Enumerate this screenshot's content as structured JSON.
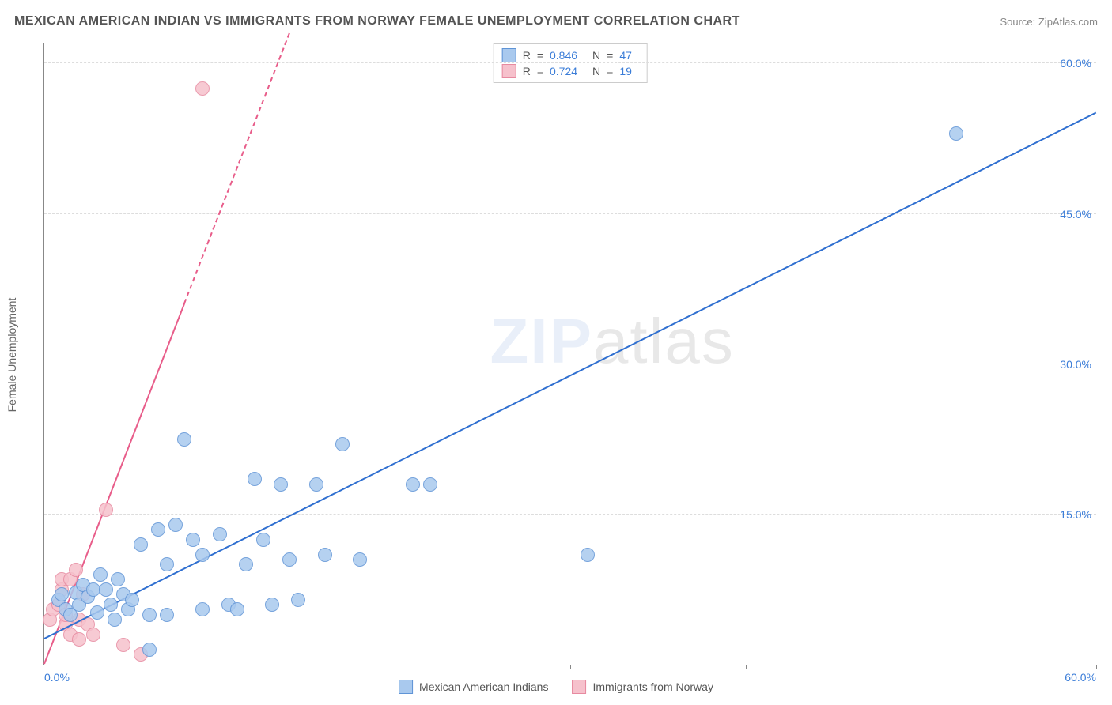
{
  "header": {
    "title": "MEXICAN AMERICAN INDIAN VS IMMIGRANTS FROM NORWAY FEMALE UNEMPLOYMENT CORRELATION CHART",
    "source_prefix": "Source: ",
    "source_name": "ZipAtlas.com"
  },
  "watermark": {
    "part1": "ZIP",
    "part2": "atlas"
  },
  "chart": {
    "type": "scatter",
    "x_min": 0,
    "x_max": 60,
    "y_min": 0,
    "y_max": 62,
    "background_color": "#ffffff",
    "grid_color": "#dddddd",
    "axis_color": "#888888",
    "y_axis_title": "Female Unemployment",
    "y_ticks": [
      15,
      30,
      45,
      60
    ],
    "y_tick_labels": [
      "15.0%",
      "30.0%",
      "45.0%",
      "60.0%"
    ],
    "x_ticks": [
      0,
      20,
      30,
      40,
      50,
      60
    ],
    "x_tick_labels_shown": {
      "0": "0.0%",
      "60": "60.0%"
    },
    "tick_label_color": "#3b7dd8",
    "tick_label_fontsize": 14,
    "axis_title_fontsize": 14,
    "marker_radius": 9,
    "marker_stroke_width": 1.5,
    "trend_line_width": 2
  },
  "series": [
    {
      "id": "mexican_american_indians",
      "label": "Mexican American Indians",
      "fill_color": "#a9c9ee",
      "stroke_color": "#5f94d6",
      "trend_color": "#2f6fd0",
      "R": "0.846",
      "N": "47",
      "trend": {
        "x1": 0,
        "y1": 2.5,
        "x2": 60,
        "y2": 55,
        "dash_after_x": 60
      },
      "points": [
        [
          0.8,
          6.5
        ],
        [
          1.0,
          7.0
        ],
        [
          1.2,
          5.5
        ],
        [
          1.5,
          5.0
        ],
        [
          1.8,
          7.2
        ],
        [
          2.0,
          6.0
        ],
        [
          2.2,
          8.0
        ],
        [
          2.5,
          6.8
        ],
        [
          2.8,
          7.5
        ],
        [
          3.0,
          5.2
        ],
        [
          3.2,
          9.0
        ],
        [
          3.5,
          7.5
        ],
        [
          3.8,
          6.0
        ],
        [
          4.0,
          4.5
        ],
        [
          4.2,
          8.5
        ],
        [
          4.5,
          7.0
        ],
        [
          4.8,
          5.5
        ],
        [
          5.0,
          6.5
        ],
        [
          5.5,
          12.0
        ],
        [
          6.0,
          5.0
        ],
        [
          6.0,
          1.5
        ],
        [
          6.5,
          13.5
        ],
        [
          7.0,
          10.0
        ],
        [
          7.0,
          5.0
        ],
        [
          7.5,
          14.0
        ],
        [
          8.0,
          22.5
        ],
        [
          8.5,
          12.5
        ],
        [
          9.0,
          11.0
        ],
        [
          9.0,
          5.5
        ],
        [
          10.0,
          13.0
        ],
        [
          10.5,
          6.0
        ],
        [
          11.0,
          5.5
        ],
        [
          11.5,
          10.0
        ],
        [
          12.0,
          18.5
        ],
        [
          12.5,
          12.5
        ],
        [
          13.0,
          6.0
        ],
        [
          13.5,
          18.0
        ],
        [
          14.0,
          10.5
        ],
        [
          14.5,
          6.5
        ],
        [
          15.5,
          18.0
        ],
        [
          16.0,
          11.0
        ],
        [
          17.0,
          22.0
        ],
        [
          18.0,
          10.5
        ],
        [
          21.0,
          18.0
        ],
        [
          22.0,
          18.0
        ],
        [
          31.0,
          11.0
        ],
        [
          52.0,
          53.0
        ]
      ]
    },
    {
      "id": "immigrants_from_norway",
      "label": "Immigrants from Norway",
      "fill_color": "#f6c1cc",
      "stroke_color": "#e78aa0",
      "trend_color": "#e85d8a",
      "R": "0.724",
      "N": "19",
      "trend": {
        "x1": 0,
        "y1": 0,
        "x2": 8,
        "y2": 36,
        "dash_after_x": 8,
        "x2d": 14,
        "y2d": 63
      },
      "points": [
        [
          0.3,
          4.5
        ],
        [
          0.5,
          5.5
        ],
        [
          0.8,
          6.0
        ],
        [
          1.0,
          7.5
        ],
        [
          1.0,
          8.5
        ],
        [
          1.2,
          4.0
        ],
        [
          1.2,
          5.0
        ],
        [
          1.5,
          8.5
        ],
        [
          1.5,
          3.0
        ],
        [
          1.8,
          9.5
        ],
        [
          2.0,
          4.5
        ],
        [
          2.0,
          2.5
        ],
        [
          2.2,
          7.0
        ],
        [
          2.5,
          4.0
        ],
        [
          2.8,
          3.0
        ],
        [
          3.5,
          15.5
        ],
        [
          4.5,
          2.0
        ],
        [
          5.5,
          1.0
        ],
        [
          9.0,
          57.5
        ]
      ]
    }
  ],
  "stats_legend": {
    "r_label": "R",
    "n_label": "N",
    "eq": "="
  }
}
